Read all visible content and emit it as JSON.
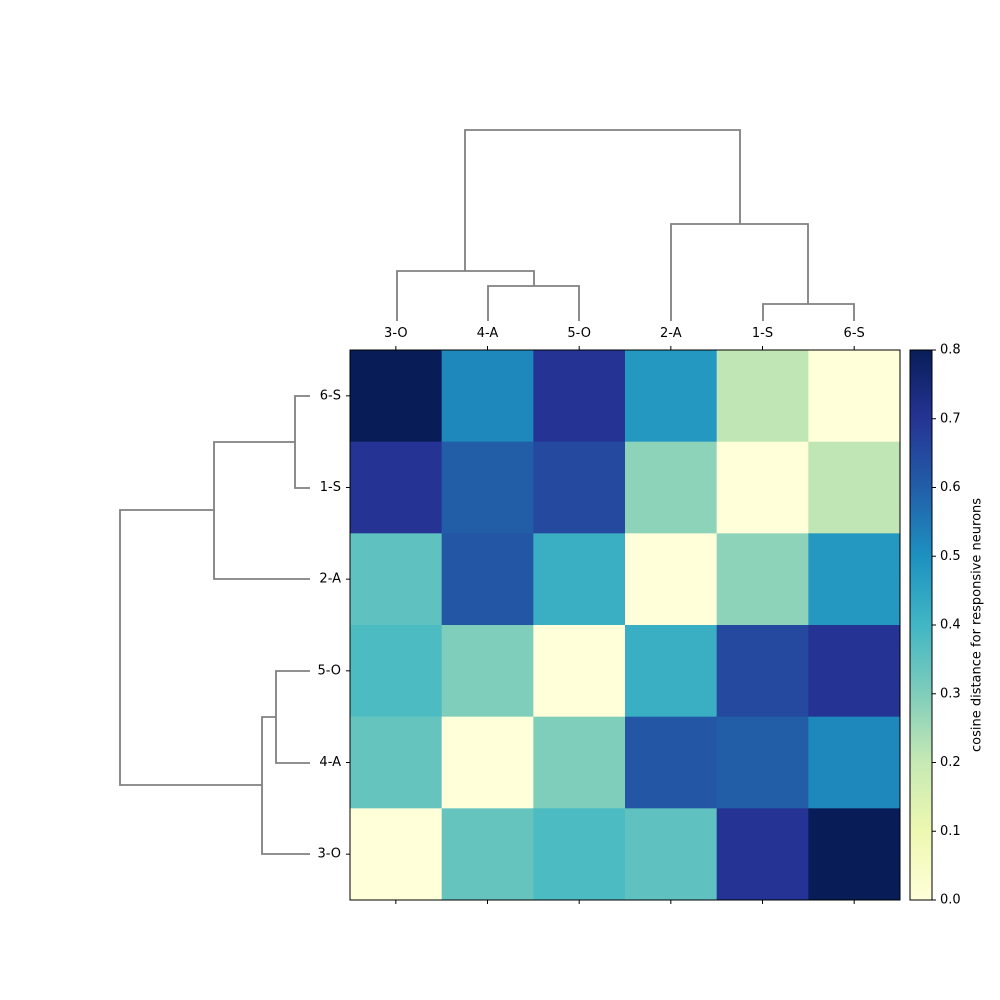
{
  "chart_data": {
    "type": "heatmap",
    "columns": [
      "3-O",
      "4-A",
      "5-O",
      "2-A",
      "1-S",
      "6-S"
    ],
    "rows": [
      "6-S",
      "1-S",
      "2-A",
      "5-O",
      "4-A",
      "3-O"
    ],
    "values": [
      [
        0.8,
        0.52,
        0.7,
        0.48,
        0.21,
        0.0
      ],
      [
        0.7,
        0.6,
        0.65,
        0.28,
        0.0,
        0.21
      ],
      [
        0.35,
        0.62,
        0.42,
        0.0,
        0.28,
        0.48
      ],
      [
        0.38,
        0.3,
        0.0,
        0.42,
        0.65,
        0.7
      ],
      [
        0.34,
        0.0,
        0.3,
        0.62,
        0.6,
        0.52
      ],
      [
        0.0,
        0.34,
        0.38,
        0.35,
        0.7,
        0.8
      ]
    ],
    "colorbar": {
      "label": "cosine distance for responsive neurons",
      "range": [
        0,
        0.8
      ],
      "ticks": [
        "0.0",
        "0.1",
        "0.2",
        "0.3",
        "0.4",
        "0.5",
        "0.6",
        "0.7",
        "0.8"
      ],
      "colormap": "YlGnBu"
    },
    "dendrogram_color": "#808080"
  }
}
